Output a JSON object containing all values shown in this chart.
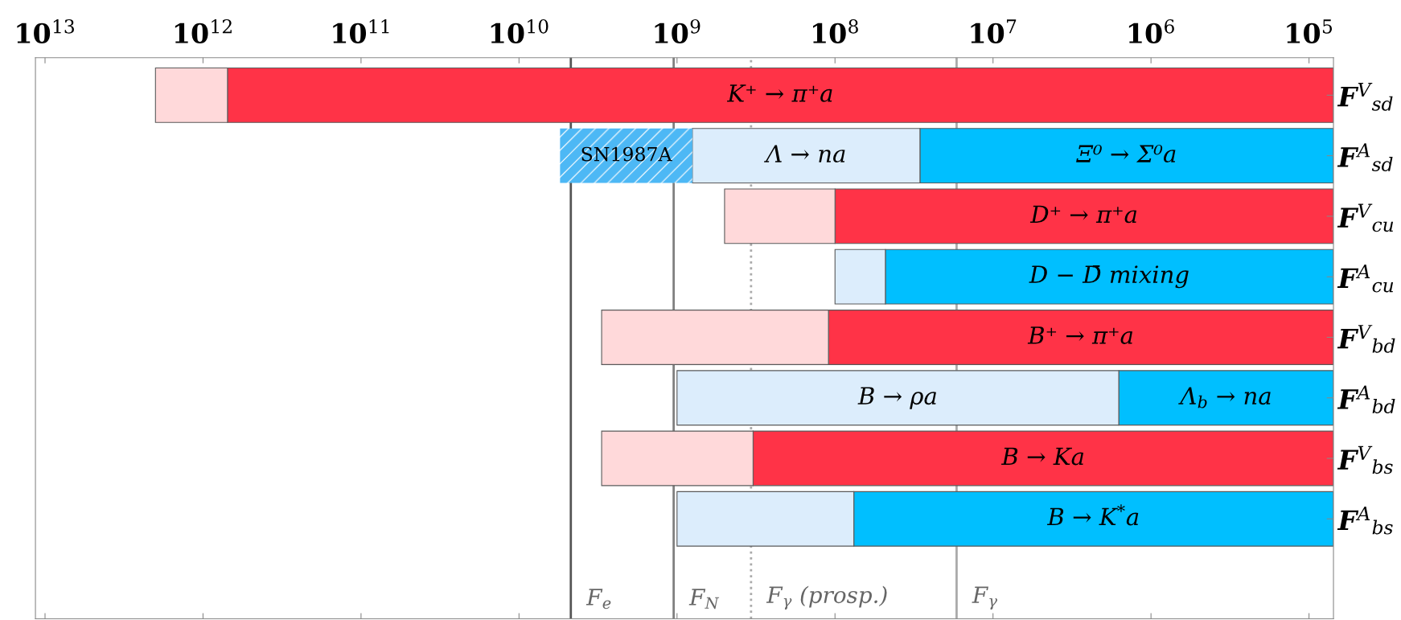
{
  "chart_data": {
    "type": "bar",
    "orientation": "horizontal",
    "log": "x",
    "categories": [
      "F$^{V}$$_{sd}$",
      "F$^{A}$$_{sd}$",
      "F$^{V}$$_{cu}$",
      "F$^{A}$$_{cu}$",
      "F$^{V}$$_{bd}$",
      "F$^{A}$$_{bd}$",
      "F$^{V}$$_{bs}$",
      "F$^{A}$$_{bs}$"
    ],
    "series": [
      {
        "base": [
          700000000000.0,
          29000000.0,
          100000000.0,
          48000000.0,
          110000000.0,
          1600000.0,
          330000000.0,
          76000000.0
        ],
        "values": [
          -699999930000.0,
          -28930000.0,
          -99930000.0,
          -47930000.0,
          -109930000.0,
          -1530000.0,
          -329930000.0,
          -75930000.0
        ],
        "colors": [
          "#ff3347",
          "#00bfff",
          "#ff3347",
          "#00bfff",
          "#ff3347",
          "#00bfff",
          "#ff3347",
          "#00bfff"
        ],
        "value_labels": [
          "K⁺ → π⁺a",
          "Ξ⁰ → Σ⁰a",
          "D⁺ → π⁺a",
          "D − D̄ mixing",
          "B⁺ → π⁺a",
          "Λ$_{b}$ → na",
          "B → Ka",
          "B → K$^{*}$a"
        ]
      },
      {
        "base": [
          2000000000000.0,
          800000000.0,
          500000000.0,
          100000000.0,
          3000000000.0,
          1000000000.0,
          3000000000.0,
          1000000000.0
        ],
        "values": [
          -1300000000000.0,
          -771000000.0,
          -400000000.0,
          -52000000.0,
          -2890000000.0,
          -998400000.0,
          -2670000000.0,
          -924000000.0
        ],
        "colors": [
          "#ffd9da",
          "#dcedfc",
          "#ffd9da",
          "#dcedfc",
          "#ffd9da",
          "#dcedfc",
          "#ffd9da",
          "#dcedfc"
        ],
        "value_labels": [
          null,
          "Λ → na",
          null,
          null,
          null,
          "B → ρa",
          null,
          null
        ]
      },
      {
        "base": [
          null,
          5500000000.0,
          null,
          null,
          null,
          null,
          null,
          null
        ],
        "values": [
          null,
          -4700000000.0,
          null,
          null,
          null,
          null,
          null,
          null
        ],
        "colors": [
          null,
          "#4db8f5",
          null,
          null,
          null,
          null,
          null,
          null
        ],
        "value_labels": [
          null,
          "SN1987A",
          null,
          null,
          null,
          null,
          null,
          null
        ]
      }
    ],
    "xlim": [
      11500000000000.0,
      70000.0
    ],
    "xticks": [
      {
        "value": 10000000000000.0,
        "label": "10$^{13}$"
      },
      {
        "value": 1000000000000.0,
        "label": "10$^{12}$"
      },
      {
        "value": 100000000000.0,
        "label": "10$^{11}$"
      },
      {
        "value": 10000000000.0,
        "label": "10$^{10}$"
      },
      {
        "value": 1000000000.0,
        "label": "10$^{9}$"
      },
      {
        "value": 100000000.0,
        "label": "10$^{8}$"
      },
      {
        "value": 10000000.0,
        "label": "10$^{7}$"
      },
      {
        "value": 1000000.0,
        "label": "10$^{6}$"
      },
      {
        "value": 100000.0,
        "label": "10$^{5}$"
      }
    ],
    "ref_lines": [
      {
        "axis": "x",
        "value": 4700000000.0,
        "label": "F$_{e}$",
        "color": "#555555",
        "line_style": "solid"
      },
      {
        "axis": "x",
        "value": 1050000000.0,
        "label": "F$_{N}$",
        "color": "#808080",
        "line_style": "solid"
      },
      {
        "axis": "x",
        "value": 340000000.0,
        "label": "F$_{γ}$ (prosp.)",
        "color": "#aaaaaa",
        "line_style": "dotted"
      },
      {
        "axis": "x",
        "value": 17000000.0,
        "label": "F$_{γ}$",
        "color": "#aaaaaa",
        "line_style": "solid"
      }
    ],
    "grid": false,
    "legend": false
  }
}
